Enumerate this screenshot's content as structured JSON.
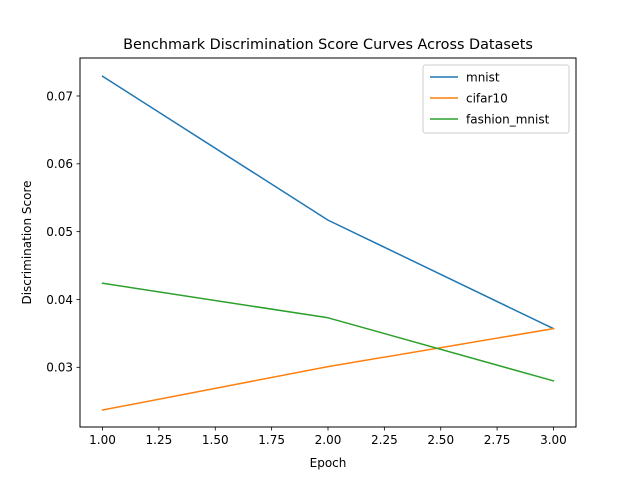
{
  "chart_data": {
    "type": "line",
    "title": "Benchmark Discrimination Score Curves Across Datasets",
    "xlabel": "Epoch",
    "ylabel": "Discrimination Score",
    "x": [
      1.0,
      2.0,
      3.0
    ],
    "xlim": [
      0.9,
      3.1
    ],
    "ylim": [
      0.0212,
      0.0756
    ],
    "xticks": [
      1.0,
      1.25,
      1.5,
      1.75,
      2.0,
      2.25,
      2.5,
      2.75,
      3.0
    ],
    "xtick_labels": [
      "1.00",
      "1.25",
      "1.50",
      "1.75",
      "2.00",
      "2.25",
      "2.50",
      "2.75",
      "3.00"
    ],
    "yticks": [
      0.03,
      0.04,
      0.05,
      0.06,
      0.07
    ],
    "ytick_labels": [
      "0.03",
      "0.04",
      "0.05",
      "0.06",
      "0.07"
    ],
    "grid": false,
    "legend_position": "top-right",
    "series": [
      {
        "name": "mnist",
        "color": "#1f77b4",
        "values": [
          0.0729,
          0.0517,
          0.0357
        ]
      },
      {
        "name": "cifar10",
        "color": "#ff7f0e",
        "values": [
          0.0237,
          0.0301,
          0.0357
        ]
      },
      {
        "name": "fashion_mnist",
        "color": "#2ca02c",
        "values": [
          0.0424,
          0.0373,
          0.028
        ]
      }
    ]
  }
}
